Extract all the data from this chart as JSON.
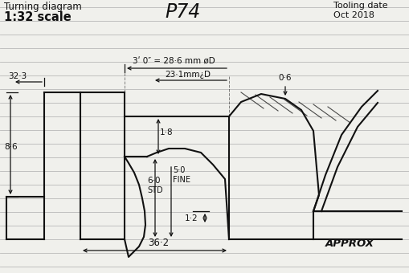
{
  "title_left": "Turning diagram",
  "scale_text": "1:32 scale",
  "center_title": "P74",
  "title_right_line1": "Tooling date",
  "title_right_line2": "Oct 2018",
  "bg_color": "#f0f0ec",
  "line_color": "#111111",
  "dim_30_text": "3ʹ 0″ = 28·6 mm øD",
  "dim_231_text": "23·1mm¿D",
  "dim_323_text": "32·3",
  "dim_86_text": "8·6",
  "dim_18_text": "1·8",
  "dim_60_text": "6·0",
  "dim_std_text": "STD",
  "dim_50_text": "5·0",
  "dim_fine_text": "FINE",
  "dim_06_text": "0·6",
  "dim_12_text": "1·2",
  "dim_362_text": "36·2",
  "approx_text": "APPROX",
  "hline_color": "#b8b8b8",
  "hline_lw": 0.6
}
